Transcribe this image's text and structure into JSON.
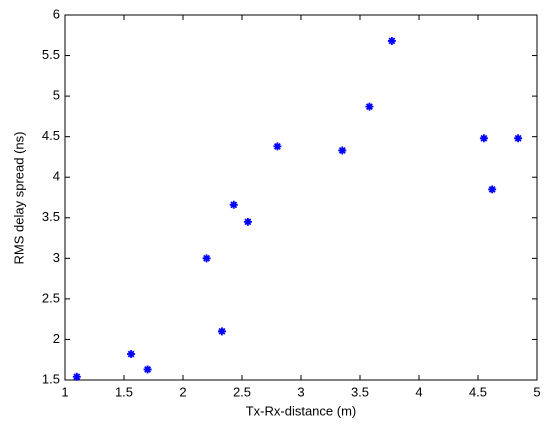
{
  "chart_data": {
    "type": "scatter",
    "xlabel": "Tx-Rx-distance (m)",
    "ylabel": "RMS delay spread (ns)",
    "x": [
      1.1,
      1.56,
      1.7,
      2.2,
      2.33,
      2.43,
      2.55,
      2.8,
      3.35,
      3.58,
      3.77,
      4.55,
      4.62,
      4.84
    ],
    "values": [
      1.54,
      1.82,
      1.63,
      3.0,
      2.1,
      3.66,
      3.45,
      4.38,
      4.33,
      4.87,
      5.68,
      4.48,
      3.85,
      4.48
    ],
    "color": "#0000ff",
    "marker": "asterisk",
    "xlim": [
      1,
      5
    ],
    "xticks": [
      1,
      1.5,
      2,
      2.5,
      3,
      3.5,
      4,
      4.5,
      5
    ],
    "ylim": [
      1.5,
      6
    ],
    "yticks": [
      1.5,
      2,
      2.5,
      3,
      3.5,
      4,
      4.5,
      5,
      5.5,
      6
    ],
    "grid": false
  }
}
